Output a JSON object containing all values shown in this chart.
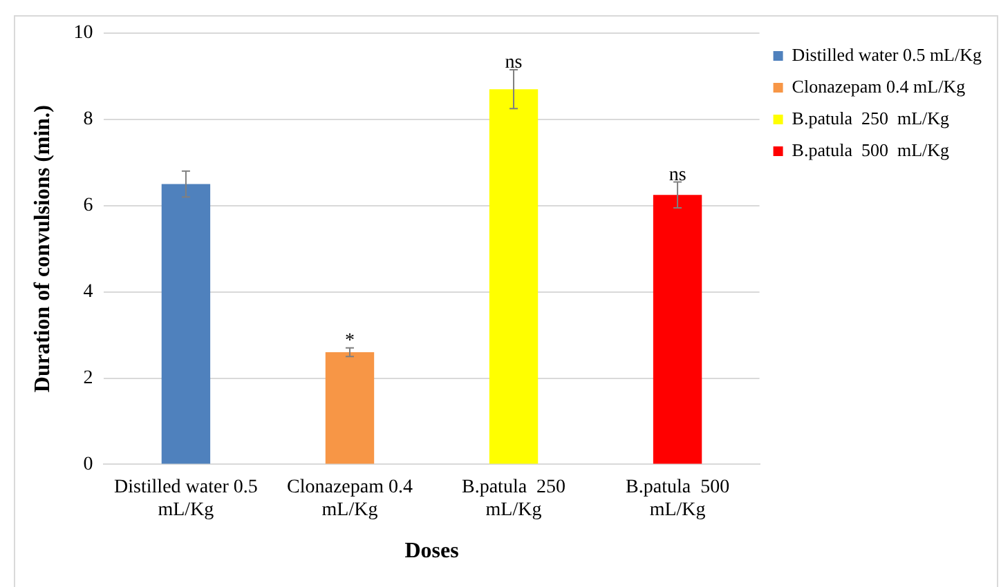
{
  "chart_data": {
    "type": "bar",
    "xlabel": "Doses",
    "ylabel": "Duration of convulsions (min.)",
    "categories": [
      "Distilled water 0.5 mL/Kg",
      "Clonazepam 0.4 mL/Kg",
      "B.patula  250  mL/Kg",
      "B.patula  500  mL/Kg"
    ],
    "series": [
      {
        "name": "Distilled water 0.5 mL/Kg",
        "color": "#4f81bd",
        "values": [
          6.5,
          null,
          null,
          null
        ],
        "errors": [
          0.3,
          null,
          null,
          null
        ]
      },
      {
        "name": "Clonazepam 0.4 mL/Kg",
        "color": "#f79646",
        "values": [
          null,
          2.6,
          null,
          null
        ],
        "errors": [
          null,
          0.1,
          null,
          null
        ]
      },
      {
        "name": "B.patula  250  mL/Kg",
        "color": "#ffff00",
        "values": [
          null,
          null,
          8.7,
          null
        ],
        "errors": [
          null,
          null,
          0.45,
          null
        ]
      },
      {
        "name": "B.patula  500  mL/Kg",
        "color": "#ff0000",
        "values": [
          null,
          null,
          null,
          6.25
        ],
        "errors": [
          null,
          null,
          null,
          0.3
        ]
      }
    ],
    "annotations": [
      {
        "text": "*",
        "x": "Clonazepam 0.4 mL/Kg",
        "y": 2.7
      },
      {
        "text": "ns",
        "x": "B.patula  250  mL/Kg",
        "y": 9.15
      },
      {
        "text": "ns",
        "x": "B.patula  500  mL/Kg",
        "y": 6.55
      }
    ],
    "ylim": [
      0,
      10
    ],
    "yticks": [
      0,
      2,
      4,
      6,
      8,
      10
    ],
    "grid": "y",
    "legend": "right"
  }
}
